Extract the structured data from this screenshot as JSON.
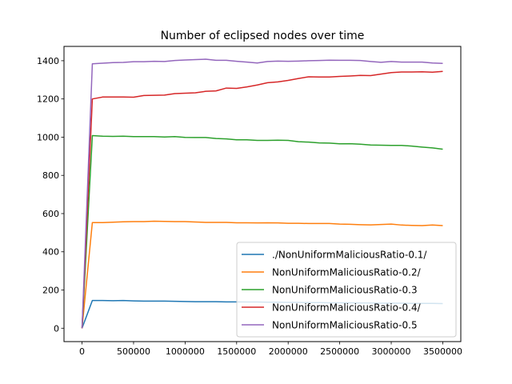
{
  "chart_data": {
    "type": "line",
    "title": "Number of eclipsed nodes over time",
    "xlabel": "",
    "ylabel": "",
    "xlim": [
      -175000,
      3675000
    ],
    "ylim": [
      -70,
      1475
    ],
    "xticks": [
      0,
      500000,
      1000000,
      1500000,
      2000000,
      2500000,
      3000000,
      3500000
    ],
    "yticks": [
      0,
      200,
      400,
      600,
      800,
      1000,
      1200,
      1400
    ],
    "grid": false,
    "legend_position": "lower-right",
    "x": [
      0,
      100000,
      200000,
      300000,
      400000,
      500000,
      600000,
      700000,
      800000,
      900000,
      1000000,
      1100000,
      1200000,
      1300000,
      1400000,
      1500000,
      1600000,
      1700000,
      1800000,
      1900000,
      2000000,
      2100000,
      2200000,
      2300000,
      2400000,
      2500000,
      2600000,
      2700000,
      2800000,
      2900000,
      3000000,
      3100000,
      3200000,
      3300000,
      3400000,
      3500000
    ],
    "series": [
      {
        "name": "./NonUniformMaliciousRatio-0.1/",
        "color": "#1f77b4",
        "values": [
          0,
          145,
          145,
          144,
          145,
          143,
          142,
          142,
          142,
          141,
          140,
          139,
          139,
          139,
          138,
          138,
          137,
          137,
          136,
          136,
          135,
          135,
          134,
          134,
          133,
          133,
          133,
          132,
          132,
          131,
          131,
          131,
          130,
          130,
          130,
          129
        ]
      },
      {
        "name": "NonUniformMaliciousRatio-0.2/",
        "color": "#ff7f0e",
        "values": [
          0,
          553,
          553,
          555,
          557,
          558,
          558,
          560,
          559,
          558,
          558,
          556,
          554,
          554,
          554,
          552,
          552,
          551,
          552,
          551,
          549,
          549,
          548,
          548,
          548,
          545,
          544,
          542,
          541,
          543,
          545,
          540,
          538,
          537,
          540,
          537
        ]
      },
      {
        "name": "NonUniformMaliciousRatio-0.3",
        "color": "#2ca02c",
        "values": [
          0,
          1008,
          1005,
          1004,
          1005,
          1003,
          1003,
          1003,
          1001,
          1003,
          999,
          998,
          998,
          993,
          991,
          986,
          986,
          983,
          983,
          984,
          983,
          976,
          974,
          970,
          969,
          965,
          966,
          963,
          959,
          958,
          957,
          957,
          953,
          948,
          944,
          937
        ]
      },
      {
        "name": "NonUniformMaliciousRatio-0.4/",
        "color": "#d62728",
        "values": [
          0,
          1200,
          1210,
          1210,
          1210,
          1209,
          1218,
          1219,
          1220,
          1228,
          1230,
          1232,
          1240,
          1242,
          1257,
          1255,
          1263,
          1273,
          1285,
          1289,
          1297,
          1307,
          1316,
          1315,
          1315,
          1318,
          1320,
          1323,
          1322,
          1330,
          1338,
          1341,
          1341,
          1342,
          1340,
          1344
        ]
      },
      {
        "name": "NonUniformMaliciousRatio-0.5",
        "color": "#9467bd",
        "values": [
          0,
          1384,
          1387,
          1390,
          1391,
          1395,
          1395,
          1397,
          1396,
          1401,
          1404,
          1406,
          1408,
          1402,
          1402,
          1397,
          1393,
          1388,
          1396,
          1398,
          1397,
          1398,
          1400,
          1401,
          1403,
          1402,
          1402,
          1401,
          1396,
          1392,
          1396,
          1393,
          1393,
          1393,
          1388,
          1386
        ]
      }
    ]
  }
}
